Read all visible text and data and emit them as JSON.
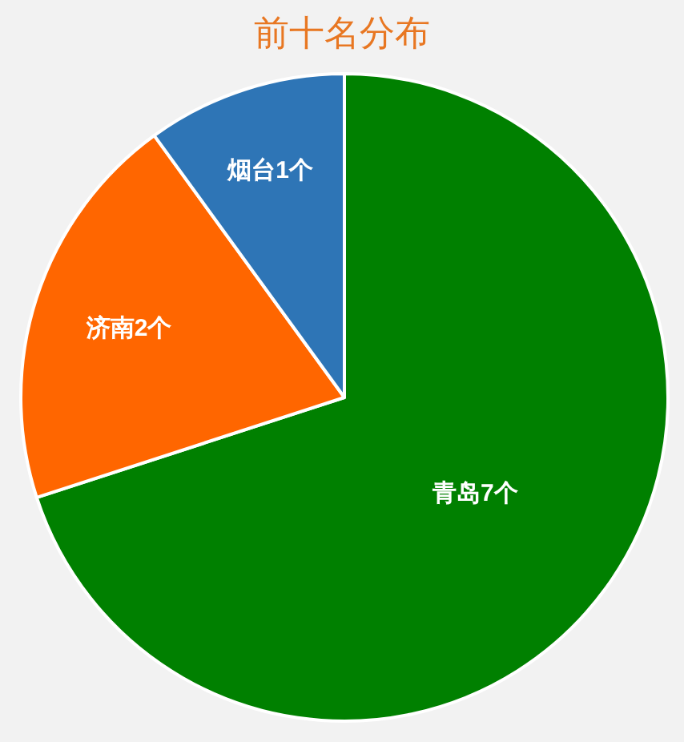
{
  "chart_data": {
    "type": "pie",
    "title": "前十名分布",
    "categories": [
      "青岛7个",
      "济南2个",
      "烟台1个"
    ],
    "values": [
      7,
      2,
      1
    ],
    "colors": [
      "#008000",
      "#ff6600",
      "#2e75b6"
    ]
  }
}
